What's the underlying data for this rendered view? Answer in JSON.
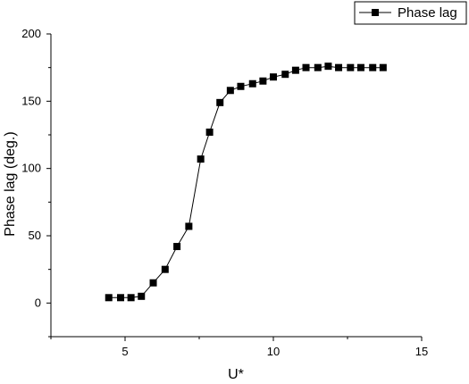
{
  "chart_data": {
    "type": "line",
    "title": "",
    "xlabel": "U*",
    "ylabel": "Phase lag (deg.)",
    "xlim": [
      2.5,
      15
    ],
    "ylim": [
      -25,
      200
    ],
    "x_ticks": [
      5,
      10,
      15
    ],
    "y_ticks": [
      0,
      50,
      100,
      150,
      200
    ],
    "grid": false,
    "legend_position": "top-right",
    "marker": "square",
    "color": "#000000",
    "series": [
      {
        "name": "Phase lag",
        "x": [
          4.45,
          4.85,
          5.2,
          5.55,
          5.95,
          6.35,
          6.75,
          7.15,
          7.55,
          7.85,
          8.2,
          8.55,
          8.9,
          9.3,
          9.65,
          10.0,
          10.4,
          10.75,
          11.1,
          11.5,
          11.85,
          12.2,
          12.6,
          12.95,
          13.35,
          13.7
        ],
        "values": [
          4,
          4,
          4,
          5,
          15,
          25,
          42,
          57,
          107,
          127,
          149,
          158,
          161,
          163,
          165,
          168,
          170,
          173,
          175,
          175,
          176,
          175,
          175,
          175,
          175,
          175
        ]
      }
    ]
  }
}
